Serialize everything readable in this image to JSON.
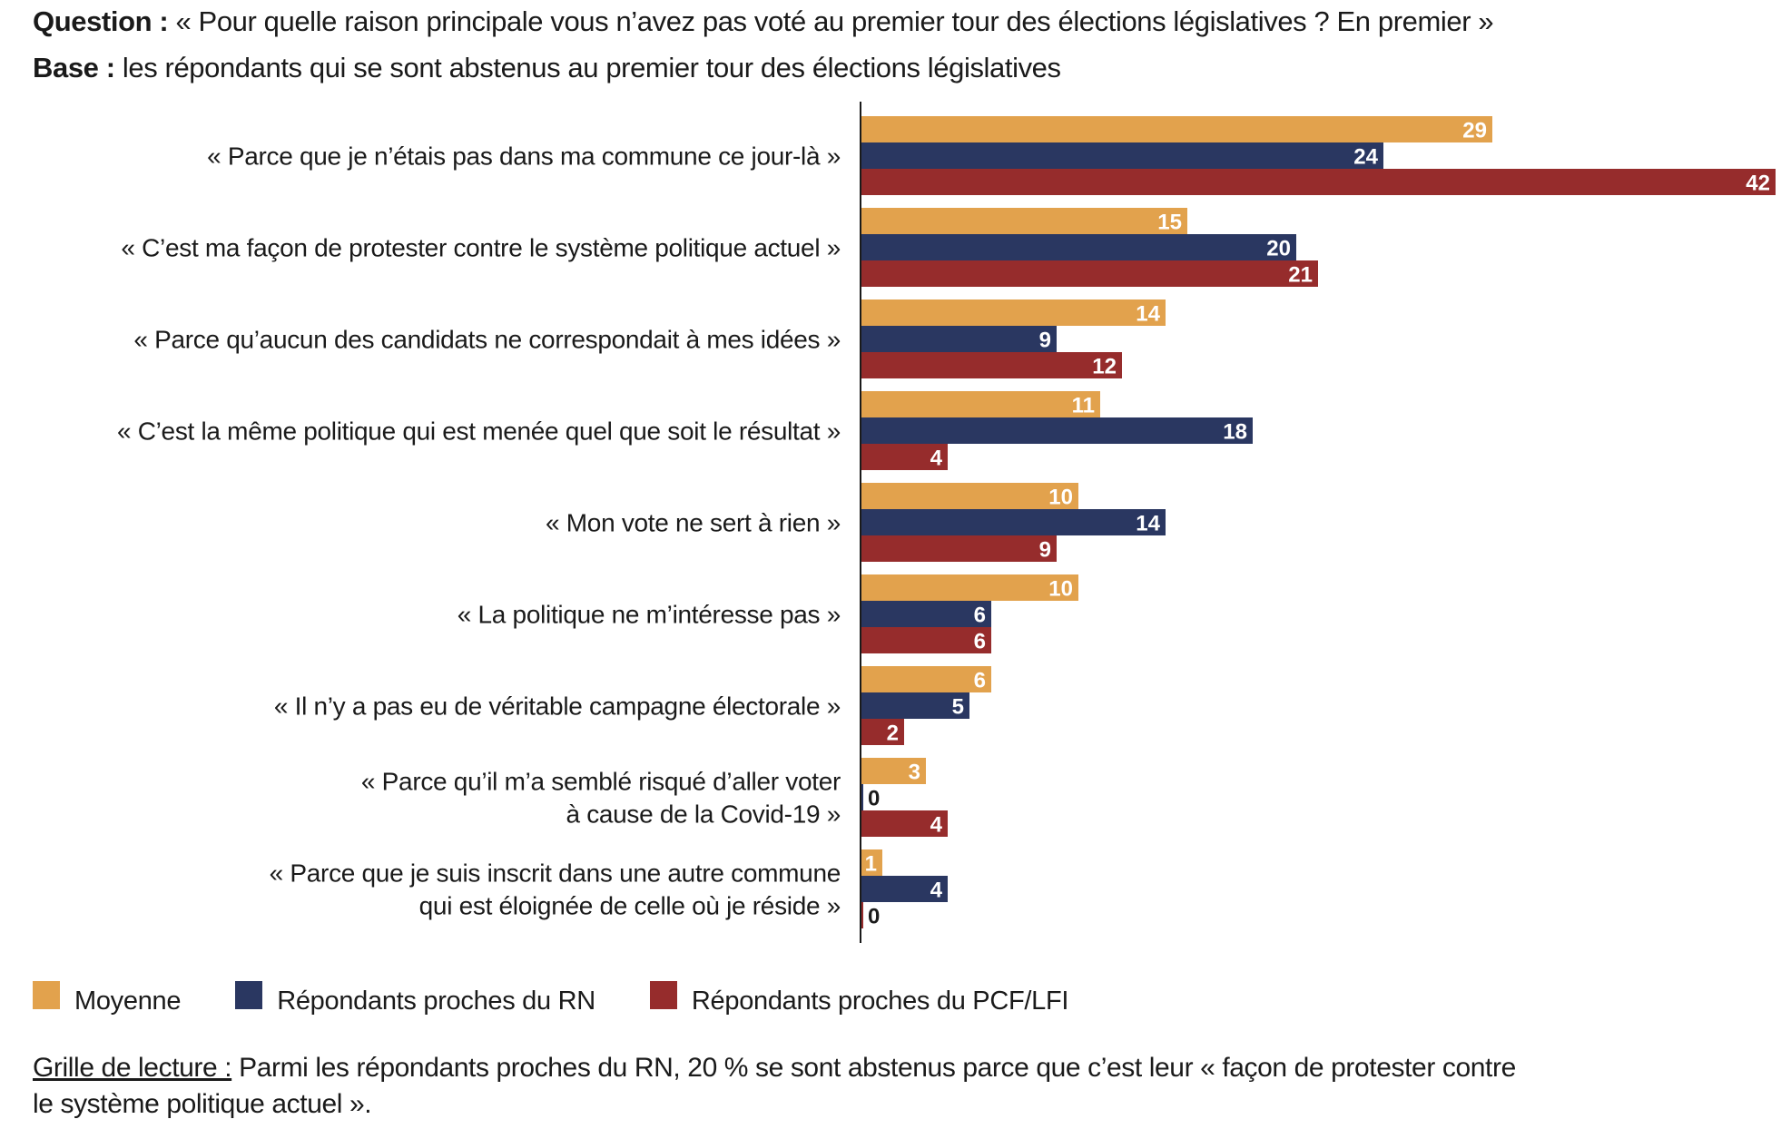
{
  "header": {
    "question_label": "Question :",
    "question_text": "« Pour quelle raison principale vous n’avez pas voté au premier tour des élections législatives ? En premier »",
    "base_label": "Base :",
    "base_text": "les répondants qui se sont abstenus au premier tour des élections législatives"
  },
  "colors": {
    "moyenne": "#E2A24D",
    "rn": "#2A3761",
    "pcf_lfi": "#962C2C",
    "axis": "#1a1a1a"
  },
  "chart_data": {
    "type": "bar",
    "orientation": "horizontal",
    "title": "« Pour quelle raison principale vous n’avez pas voté au premier tour des élections législatives ? En premier »",
    "xlabel": "",
    "ylabel": "",
    "xlim": [
      0,
      42
    ],
    "grid": false,
    "legend_position": "bottom-left",
    "categories": [
      [
        "« Parce que je n’étais pas dans ma commune ce jour-là »"
      ],
      [
        "« C’est ma façon de protester contre le système politique actuel »"
      ],
      [
        "« Parce qu’aucun des candidats ne correspondait à mes idées »"
      ],
      [
        "« C’est la même politique qui est menée quel que soit le résultat »"
      ],
      [
        "« Mon vote ne sert à rien »"
      ],
      [
        "« La politique ne m’intéresse pas »"
      ],
      [
        "« Il n’y a pas eu de véritable campagne électorale »"
      ],
      [
        "« Parce qu’il m’a semblé risqué d’aller voter",
        "à cause de la Covid-19 »"
      ],
      [
        "« Parce que je suis inscrit dans une autre commune",
        "qui est éloignée de celle où je réside »"
      ]
    ],
    "series": [
      {
        "name": "Moyenne",
        "color": "#E2A24D",
        "values": [
          29,
          15,
          14,
          11,
          10,
          10,
          6,
          3,
          1
        ]
      },
      {
        "name": "Répondants proches du RN",
        "color": "#2A3761",
        "values": [
          24,
          20,
          9,
          18,
          14,
          6,
          5,
          0,
          4
        ]
      },
      {
        "name": "Répondants proches du PCF/LFI",
        "color": "#962C2C",
        "values": [
          42,
          21,
          12,
          4,
          9,
          6,
          2,
          4,
          0
        ]
      }
    ]
  },
  "footer": {
    "reading_label": "Grille de lecture :",
    "reading_text_line1": " Parmi les répondants proches du RN, 20 % se sont abstenus parce que c’est leur « façon de protester contre",
    "reading_text_line2": "le système politique actuel »."
  }
}
